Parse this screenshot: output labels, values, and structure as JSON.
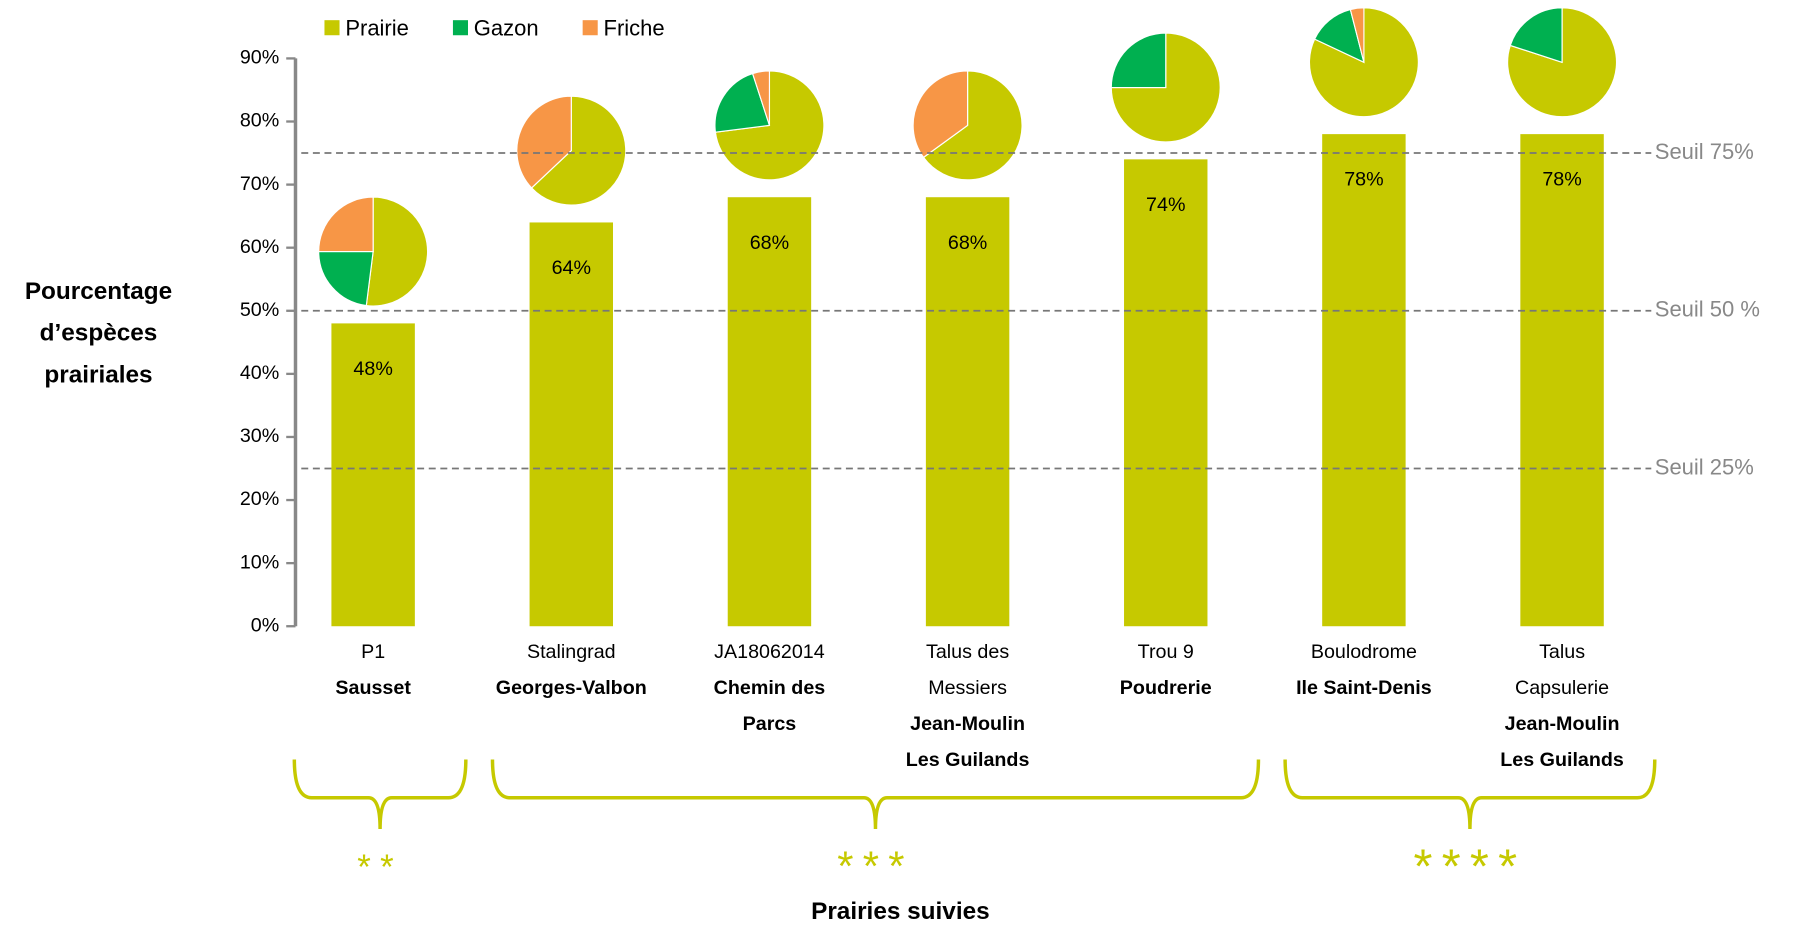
{
  "chart_data": {
    "type": "bar",
    "y_label": [
      "Pourcentage",
      "d’espèces",
      "prairiales"
    ],
    "x_label": "Prairies suivies",
    "categories": [
      [
        "P1"
      ],
      [
        "Stalingrad"
      ],
      [
        "JA18062014"
      ],
      [
        "Talus des",
        "Messiers"
      ],
      [
        "Trou 9"
      ],
      [
        "Boulodrome"
      ],
      [
        "Talus",
        "Capsulerie"
      ]
    ],
    "sites": [
      [
        "Sausset"
      ],
      [
        "Georges-Valbon"
      ],
      [
        "Chemin des",
        "Parcs"
      ],
      [
        "Jean-Moulin",
        "Les Guilands"
      ],
      [
        "Poudrerie"
      ],
      [
        "Ile Saint-Denis"
      ],
      [
        "Jean-Moulin",
        "Les Guilands"
      ]
    ],
    "values": [
      48,
      64,
      68,
      68,
      74,
      78,
      78
    ],
    "value_labels": [
      "48%",
      "64%",
      "68%",
      "68%",
      "74%",
      "78%",
      "78%"
    ],
    "color": "#c6c900",
    "ylim": [
      0,
      90
    ],
    "yticks": [
      {
        "value": 0,
        "label": "0%"
      },
      {
        "value": 10,
        "label": "10%"
      },
      {
        "value": 20,
        "label": "20%"
      },
      {
        "value": 30,
        "label": "30%"
      },
      {
        "value": 40,
        "label": "40%"
      },
      {
        "value": 50,
        "label": "50%"
      },
      {
        "value": 60,
        "label": "60%"
      },
      {
        "value": 70,
        "label": "70%"
      },
      {
        "value": 80,
        "label": "80%"
      },
      {
        "value": 90,
        "label": "90%"
      }
    ],
    "thresholds": [
      {
        "value": 75,
        "label": "Seuil 75%"
      },
      {
        "value": 50,
        "label": "Seuil 50 %"
      },
      {
        "value": 25,
        "label": "Seuil 25%"
      }
    ],
    "composition": [
      {
        "name": "Prairie",
        "color": "#c6c900",
        "values": [
          52,
          63,
          73,
          65,
          75,
          82,
          80
        ]
      },
      {
        "name": "Gazon",
        "color": "#00b050",
        "values": [
          23,
          0,
          22,
          0,
          25,
          14,
          20
        ]
      },
      {
        "name": "Friche",
        "color": "#f79646",
        "values": [
          25,
          37,
          5,
          35,
          0,
          4,
          0
        ]
      }
    ],
    "groups": [
      {
        "stars": "**",
        "count": 1
      },
      {
        "stars": "***",
        "count": 4
      },
      {
        "stars": "****",
        "count": 2
      }
    ]
  }
}
